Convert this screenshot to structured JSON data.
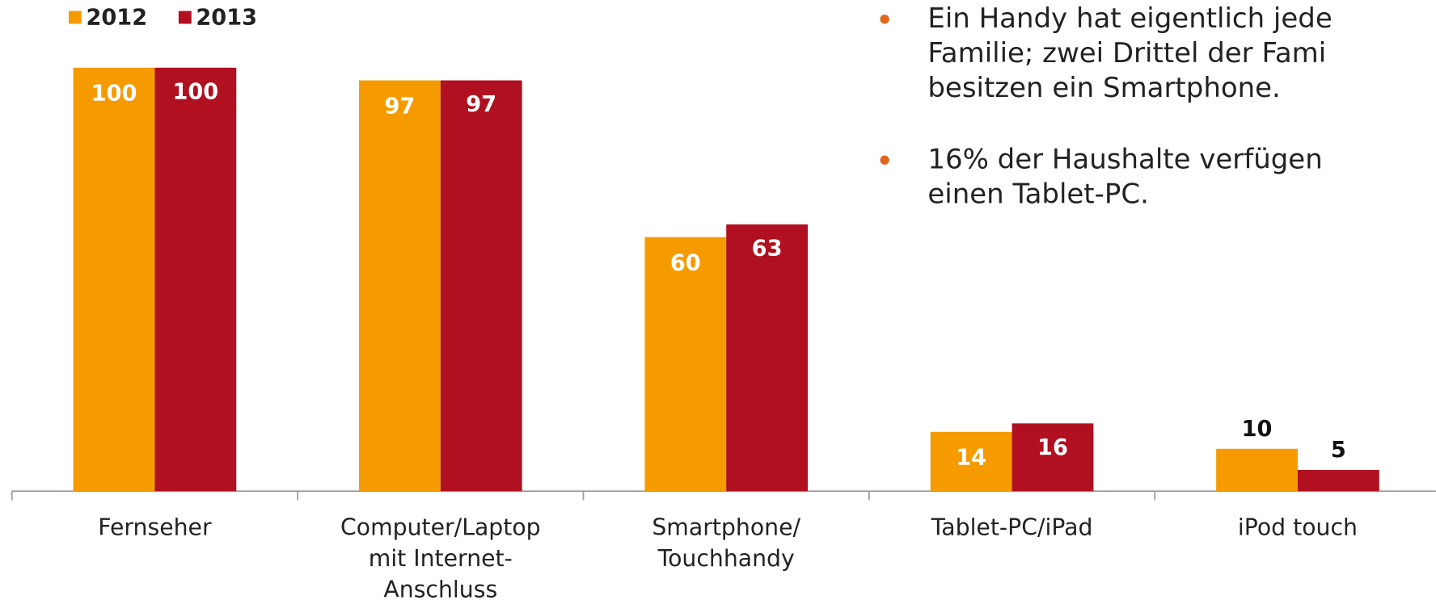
{
  "chart_data": {
    "type": "bar",
    "categories": [
      [
        "Fernseher"
      ],
      [
        "Computer/Laptop",
        "mit Internet-",
        "Anschluss"
      ],
      [
        "Smartphone/",
        "Touchhandy"
      ],
      [
        "Tablet-PC/iPad"
      ],
      [
        "iPod touch"
      ]
    ],
    "series": [
      {
        "name": "2012",
        "color": "#f59b00",
        "values": [
          100,
          97,
          60,
          14,
          10
        ]
      },
      {
        "name": "2013",
        "color": "#b01020",
        "values": [
          100,
          97,
          63,
          16,
          5
        ]
      }
    ],
    "ylim": [
      0,
      100
    ],
    "legend": "top-left",
    "bullets": [
      [
        "Ein Handy hat eigentlich jede",
        "Familie; zwei Drittel der Fami",
        "besitzen ein Smartphone."
      ],
      [
        "16% der Haushalte verfügen",
        "einen Tablet-PC."
      ]
    ]
  }
}
